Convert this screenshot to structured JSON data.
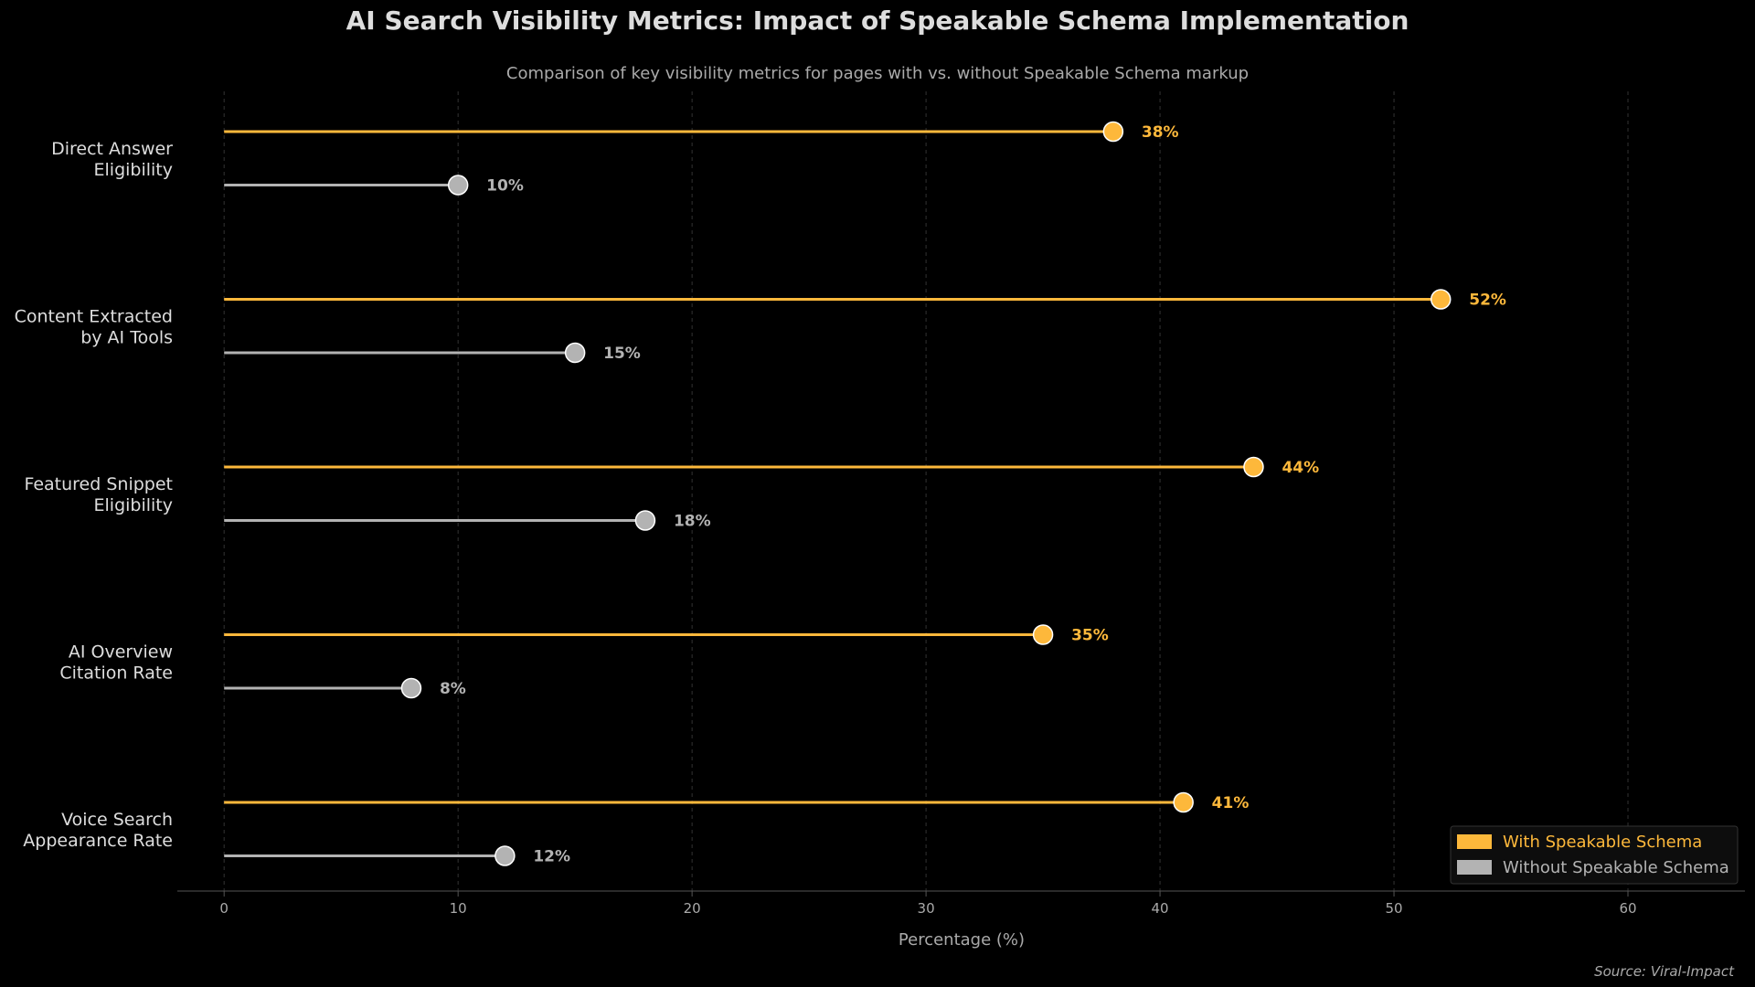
{
  "chart_data": {
    "type": "lollipop",
    "orientation": "horizontal",
    "title": "AI Search Visibility Metrics: Impact of Speakable Schema Implementation",
    "subtitle": "Comparison of key visibility metrics for pages with vs. without Speakable Schema markup",
    "xlabel": "Percentage (%)",
    "xlim": [
      -2,
      65
    ],
    "xticks": [
      0,
      10,
      20,
      30,
      40,
      50,
      60
    ],
    "grid": "vertical-dashed",
    "categories": [
      [
        "Direct Answer",
        "Eligibility"
      ],
      [
        "Content Extracted",
        "by AI Tools"
      ],
      [
        "Featured Snippet",
        "Eligibility"
      ],
      [
        "AI Overview",
        "Citation Rate"
      ],
      [
        "Voice Search",
        "Appearance Rate"
      ]
    ],
    "series": [
      {
        "name": "With Speakable Schema",
        "color": "#FDB83B",
        "values": [
          38,
          52,
          44,
          35,
          41
        ],
        "labels": [
          "38%",
          "52%",
          "44%",
          "35%",
          "41%"
        ]
      },
      {
        "name": "Without Speakable Schema",
        "color": "#B3B3B3",
        "values": [
          10,
          15,
          18,
          8,
          12
        ],
        "labels": [
          "10%",
          "15%",
          "18%",
          "8%",
          "12%"
        ]
      }
    ],
    "legend_position": "bottom-right",
    "source": "Source: Viral-Impact"
  },
  "colors": {
    "background": "#000000",
    "text": "#DDDDDD",
    "muted_text": "#AAAAAA",
    "grid": "#333333",
    "axis": "#555555"
  }
}
